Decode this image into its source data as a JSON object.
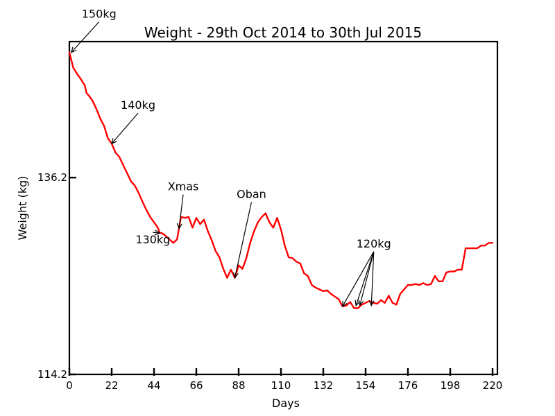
{
  "chart_data": {
    "type": "line",
    "title": "Weight - 29th Oct 2014 to 30th Jul 2015",
    "xlabel": "Days",
    "ylabel": "Weight (kg)",
    "xlim": [
      0,
      220
    ],
    "ylim": [
      114.2,
      151.4
    ],
    "xticks": [
      0,
      22,
      44,
      66,
      88,
      110,
      132,
      154,
      176,
      198,
      220
    ],
    "yticks": [
      114.2,
      136.2
    ],
    "grid": false,
    "line_color": "#ff0000",
    "x": [
      0,
      2,
      4,
      6,
      8,
      9,
      10,
      12,
      14,
      16,
      18,
      20,
      22,
      24,
      26,
      28,
      30,
      32,
      34,
      36,
      38,
      40,
      42,
      44,
      46,
      47,
      48,
      50,
      52,
      54,
      56,
      58,
      60,
      62,
      64,
      66,
      68,
      70,
      72,
      74,
      76,
      78,
      80,
      82,
      84,
      86,
      88,
      90,
      92,
      94,
      96,
      98,
      100,
      102,
      104,
      106,
      108,
      110,
      112,
      114,
      116,
      118,
      120,
      122,
      124,
      126,
      128,
      130,
      132,
      134,
      136,
      138,
      140,
      142,
      144,
      146,
      148,
      150,
      152,
      154,
      156,
      158,
      160,
      162,
      164,
      166,
      168,
      170,
      172,
      174,
      176,
      178,
      180,
      182,
      184,
      186,
      188,
      190,
      192,
      194,
      196,
      198,
      200,
      202,
      204,
      206,
      208,
      210,
      212,
      214,
      216,
      218,
      220
    ],
    "y": [
      150.2,
      148.5,
      147.8,
      147.2,
      146.5,
      145.6,
      145.4,
      144.8,
      143.9,
      142.8,
      142.0,
      140.6,
      140.0,
      139.0,
      138.5,
      137.6,
      136.7,
      135.8,
      135.3,
      134.5,
      133.5,
      132.6,
      131.8,
      131.2,
      130.6,
      130.0,
      130.0,
      129.7,
      129.3,
      128.9,
      129.3,
      131.8,
      131.7,
      131.8,
      130.6,
      131.7,
      131.0,
      131.5,
      130.2,
      129.2,
      128.0,
      127.3,
      126.0,
      125.0,
      125.9,
      125.0,
      126.4,
      126.0,
      127.2,
      128.9,
      130.2,
      131.2,
      131.8,
      132.2,
      131.2,
      130.6,
      131.7,
      130.4,
      128.6,
      127.3,
      127.2,
      126.8,
      126.6,
      125.5,
      125.2,
      124.2,
      123.9,
      123.7,
      123.5,
      123.6,
      123.2,
      122.9,
      122.6,
      121.8,
      121.9,
      122.3,
      121.6,
      121.6,
      122.0,
      122.2,
      122.4,
      122.2,
      122.1,
      122.5,
      122.2,
      123.0,
      122.2,
      122.0,
      123.2,
      123.7,
      124.2,
      124.2,
      124.3,
      124.2,
      124.4,
      124.2,
      124.3,
      125.2,
      124.6,
      124.6,
      125.6,
      125.7,
      125.7,
      125.9,
      125.9,
      128.3,
      128.3,
      128.3,
      128.3,
      128.6,
      128.6,
      128.9,
      128.9
    ],
    "annotations": [
      {
        "text": "150kg",
        "points": [
          [
            1,
            150.2
          ]
        ]
      },
      {
        "text": "140kg",
        "points": [
          [
            22,
            140.0
          ]
        ]
      },
      {
        "text": "130kg",
        "points": [
          [
            47,
            130.0
          ]
        ]
      },
      {
        "text": "Xmas",
        "points": [
          [
            57,
            130.5
          ]
        ]
      },
      {
        "text": "Oban",
        "points": [
          [
            86,
            125.0
          ]
        ]
      },
      {
        "text": "120kg",
        "points": [
          [
            142,
            121.8
          ],
          [
            149,
            121.9
          ],
          [
            151,
            121.9
          ],
          [
            157,
            121.9
          ]
        ]
      }
    ]
  }
}
